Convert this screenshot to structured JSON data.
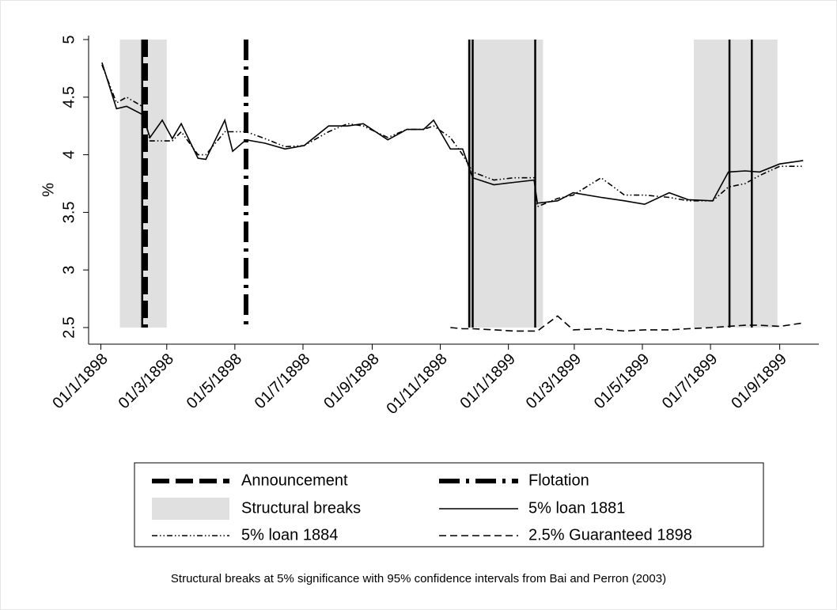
{
  "chart_data": {
    "type": "line",
    "ylabel": "%",
    "note": "Structural breaks at 5% significance with 95% confidence intervals from Bai and Perron (2003)",
    "xlim": [
      "1897-12-21",
      "1899-10-06"
    ],
    "xticks": [
      {
        "value": "1898-01-01",
        "label": "01/1/1898"
      },
      {
        "value": "1898-03-01",
        "label": "01/3/1898"
      },
      {
        "value": "1898-05-01",
        "label": "01/5/1898"
      },
      {
        "value": "1898-07-01",
        "label": "01/7/1898"
      },
      {
        "value": "1898-09-01",
        "label": "01/9/1898"
      },
      {
        "value": "1898-11-01",
        "label": "01/11/1898"
      },
      {
        "value": "1899-01-01",
        "label": "01/1/1899"
      },
      {
        "value": "1899-03-01",
        "label": "01/3/1899"
      },
      {
        "value": "1899-05-01",
        "label": "01/5/1899"
      },
      {
        "value": "1899-07-01",
        "label": "01/7/1899"
      },
      {
        "value": "1899-09-01",
        "label": "01/9/1899"
      }
    ],
    "ylim": [
      2.5,
      5
    ],
    "yticks": [
      2.5,
      3,
      3.5,
      4,
      4.5,
      5
    ],
    "events": [
      {
        "name": "Announcement",
        "date": "1898-02-10",
        "style": "dash",
        "color": "#000000"
      },
      {
        "name": "Flotation",
        "date": "1898-05-11",
        "style": "dash-dot",
        "color": "#000000"
      }
    ],
    "structural_breaks": {
      "name": "Structural breaks",
      "color": "#e0e0e0",
      "intervals": [
        [
          "1898-01-18",
          "1898-03-01"
        ],
        [
          "1898-11-25",
          "1899-02-01"
        ],
        [
          "1899-06-16",
          "1899-08-30"
        ]
      ],
      "break_dates": [
        "1898-02-07",
        "1898-11-27",
        "1898-11-30",
        "1899-01-25",
        "1899-07-18",
        "1899-08-07"
      ]
    },
    "x": [
      "1898-01-02",
      "1898-01-15",
      "1898-01-24",
      "1898-02-07",
      "1898-02-14",
      "1898-02-25",
      "1898-03-06",
      "1898-03-14",
      "1898-03-29",
      "1898-04-05",
      "1898-04-22",
      "1898-04-29",
      "1898-05-11",
      "1898-05-28",
      "1898-06-15",
      "1898-07-02",
      "1898-07-24",
      "1898-08-10",
      "1898-08-24",
      "1898-09-15",
      "1898-10-02",
      "1898-10-17",
      "1898-10-26",
      "1898-11-10",
      "1898-11-21",
      "1898-11-30",
      "1898-12-19",
      "1899-01-06",
      "1899-01-24",
      "1899-01-27",
      "1899-02-14",
      "1899-02-28",
      "1899-03-25",
      "1899-04-15",
      "1899-05-03",
      "1899-05-25",
      "1899-06-11",
      "1899-07-03",
      "1899-07-17",
      "1899-08-01",
      "1899-08-14",
      "1899-09-01",
      "1899-09-22"
    ],
    "series": [
      {
        "name": "5% loan 1881",
        "color": "#000000",
        "style": "solid",
        "values": [
          4.8,
          4.4,
          4.42,
          4.35,
          4.15,
          4.3,
          4.14,
          4.27,
          3.97,
          3.96,
          4.3,
          4.03,
          4.13,
          4.1,
          4.05,
          4.08,
          4.25,
          4.25,
          4.27,
          4.13,
          4.22,
          4.22,
          4.3,
          4.05,
          4.05,
          3.8,
          3.74,
          3.76,
          3.78,
          3.58,
          3.6,
          3.67,
          3.63,
          3.6,
          3.57,
          3.67,
          3.61,
          3.6,
          3.85,
          3.86,
          3.85,
          3.92,
          3.95
        ]
      },
      {
        "name": "5% loan 1884",
        "color": "#000000",
        "style": "dash-dot-dot",
        "values": [
          4.78,
          4.45,
          4.5,
          4.42,
          4.12,
          4.12,
          4.12,
          4.2,
          4.0,
          4.0,
          4.2,
          4.2,
          4.2,
          4.14,
          4.07,
          4.08,
          4.2,
          4.27,
          4.25,
          4.15,
          4.22,
          4.22,
          4.25,
          4.15,
          4.0,
          3.85,
          3.78,
          3.8,
          3.8,
          3.55,
          3.62,
          3.65,
          3.8,
          3.65,
          3.65,
          3.63,
          3.6,
          3.6,
          3.72,
          3.75,
          3.82,
          3.9,
          3.9
        ]
      },
      {
        "name": "2.5% Guaranteed 1898",
        "color": "#000000",
        "style": "dash",
        "values": [
          null,
          null,
          null,
          null,
          null,
          null,
          null,
          null,
          null,
          null,
          null,
          null,
          null,
          null,
          null,
          null,
          null,
          null,
          null,
          null,
          null,
          null,
          null,
          2.5,
          2.49,
          2.49,
          2.48,
          2.47,
          2.47,
          2.47,
          2.6,
          2.48,
          2.49,
          2.47,
          2.48,
          2.48,
          2.49,
          2.5,
          2.51,
          2.52,
          2.52,
          2.51,
          2.54
        ]
      }
    ]
  }
}
